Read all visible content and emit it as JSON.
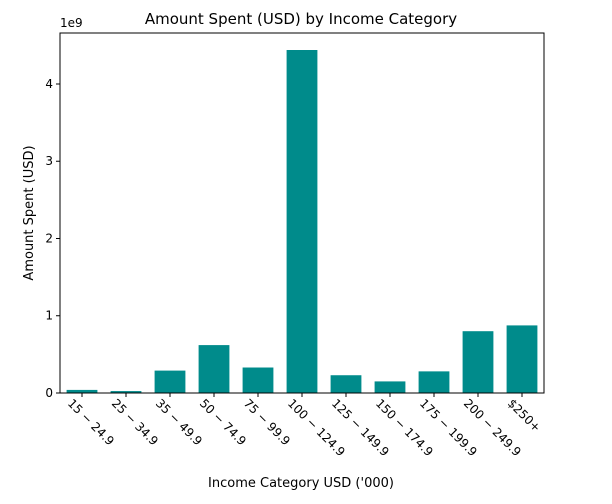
{
  "chart_data": {
    "type": "bar",
    "title": "Amount Spent (USD) by Income Category",
    "xlabel": "Income Category USD ('000)",
    "ylabel": "Amount Spent (USD)",
    "y_offset_label": "1e9",
    "y_multiplier": 1000000000,
    "categories": [
      "15 − 24.9",
      "25 − 34.9",
      "35 − 49.9",
      "50 − 74.9",
      "75 − 99.9",
      "100 − 124.9",
      "125 − 149.9",
      "150 − 174.9",
      "175 − 199.9",
      "200 − 249.9",
      "$250+"
    ],
    "values": [
      40000000,
      25000000,
      290000000,
      620000000,
      330000000,
      4440000000,
      230000000,
      150000000,
      280000000,
      800000000,
      875000000
    ],
    "ylim": [
      0,
      4660000000
    ],
    "yticks": [
      0,
      1,
      2,
      3,
      4
    ],
    "bar_color": "#008b8b",
    "grid": false,
    "legend": "none"
  }
}
